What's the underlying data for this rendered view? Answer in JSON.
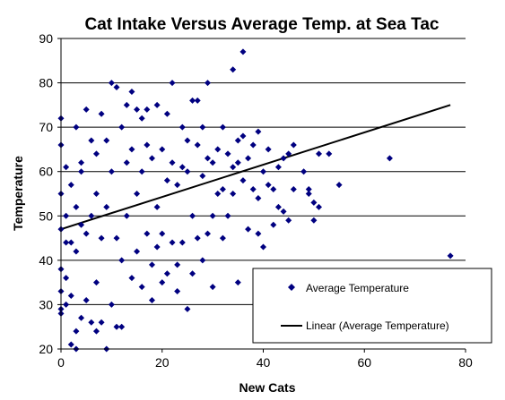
{
  "chart_data": {
    "type": "scatter",
    "title": "Cat Intake Versus  Average Temp. at Sea Tac",
    "xlabel": "New Cats",
    "ylabel": "Temperature",
    "xlim": [
      0,
      80
    ],
    "ylim": [
      20,
      90
    ],
    "x_ticks": [
      "0",
      "20",
      "40",
      "60",
      "80"
    ],
    "y_ticks": [
      "20",
      "30",
      "40",
      "50",
      "60",
      "70",
      "80",
      "90"
    ],
    "grid": "horizontal",
    "legend_position": "bottom-right",
    "marker_color": "#000080",
    "series": [
      {
        "name": "Average Temperature",
        "points": [
          [
            0,
            72
          ],
          [
            0,
            66
          ],
          [
            0,
            55
          ],
          [
            0,
            47
          ],
          [
            0,
            38
          ],
          [
            0,
            33
          ],
          [
            0,
            29
          ],
          [
            0,
            28
          ],
          [
            1,
            61
          ],
          [
            1,
            50
          ],
          [
            1,
            44
          ],
          [
            1,
            36
          ],
          [
            1,
            30
          ],
          [
            2,
            57
          ],
          [
            2,
            44
          ],
          [
            2,
            32
          ],
          [
            2,
            21
          ],
          [
            3,
            70
          ],
          [
            3,
            52
          ],
          [
            3,
            42
          ],
          [
            3,
            20
          ],
          [
            3,
            24
          ],
          [
            4,
            60
          ],
          [
            4,
            48
          ],
          [
            4,
            27
          ],
          [
            4,
            62
          ],
          [
            5,
            74
          ],
          [
            5,
            46
          ],
          [
            5,
            31
          ],
          [
            6,
            67
          ],
          [
            6,
            50
          ],
          [
            6,
            26
          ],
          [
            7,
            55
          ],
          [
            7,
            35
          ],
          [
            7,
            24
          ],
          [
            7,
            64
          ],
          [
            8,
            45
          ],
          [
            8,
            73
          ],
          [
            8,
            26
          ],
          [
            9,
            20
          ],
          [
            9,
            52
          ],
          [
            9,
            67
          ],
          [
            10,
            80
          ],
          [
            10,
            60
          ],
          [
            10,
            30
          ],
          [
            11,
            79
          ],
          [
            11,
            45
          ],
          [
            11,
            25
          ],
          [
            12,
            70
          ],
          [
            12,
            40
          ],
          [
            12,
            25
          ],
          [
            13,
            75
          ],
          [
            13,
            50
          ],
          [
            13,
            62
          ],
          [
            14,
            65
          ],
          [
            14,
            36
          ],
          [
            14,
            78
          ],
          [
            15,
            55
          ],
          [
            15,
            42
          ],
          [
            15,
            74
          ],
          [
            16,
            60
          ],
          [
            16,
            34
          ],
          [
            16,
            72
          ],
          [
            17,
            66
          ],
          [
            17,
            46
          ],
          [
            17,
            74
          ],
          [
            18,
            63
          ],
          [
            18,
            39
          ],
          [
            18,
            31
          ],
          [
            19,
            75
          ],
          [
            19,
            52
          ],
          [
            19,
            43
          ],
          [
            20,
            65
          ],
          [
            20,
            46
          ],
          [
            20,
            35
          ],
          [
            21,
            58
          ],
          [
            21,
            37
          ],
          [
            21,
            73
          ],
          [
            22,
            80
          ],
          [
            22,
            62
          ],
          [
            22,
            44
          ],
          [
            23,
            57
          ],
          [
            23,
            39
          ],
          [
            23,
            33
          ],
          [
            24,
            70
          ],
          [
            24,
            44
          ],
          [
            24,
            61
          ],
          [
            25,
            60
          ],
          [
            25,
            29
          ],
          [
            25,
            67
          ],
          [
            26,
            76
          ],
          [
            26,
            50
          ],
          [
            26,
            37
          ],
          [
            27,
            66
          ],
          [
            27,
            45
          ],
          [
            27,
            76
          ],
          [
            28,
            70
          ],
          [
            28,
            40
          ],
          [
            28,
            59
          ],
          [
            29,
            80
          ],
          [
            29,
            46
          ],
          [
            29,
            63
          ],
          [
            30,
            62
          ],
          [
            30,
            34
          ],
          [
            30,
            50
          ],
          [
            31,
            65
          ],
          [
            31,
            55
          ],
          [
            32,
            56
          ],
          [
            32,
            45
          ],
          [
            32,
            70
          ],
          [
            33,
            64
          ],
          [
            33,
            50
          ],
          [
            34,
            83
          ],
          [
            34,
            55
          ],
          [
            34,
            61
          ],
          [
            35,
            67
          ],
          [
            35,
            35
          ],
          [
            35,
            62
          ],
          [
            36,
            87
          ],
          [
            36,
            58
          ],
          [
            36,
            68
          ],
          [
            37,
            47
          ],
          [
            37,
            63
          ],
          [
            38,
            66
          ],
          [
            38,
            56
          ],
          [
            39,
            54
          ],
          [
            39,
            46
          ],
          [
            39,
            69
          ],
          [
            40,
            60
          ],
          [
            40,
            43
          ],
          [
            41,
            57
          ],
          [
            41,
            65
          ],
          [
            42,
            48
          ],
          [
            42,
            56
          ],
          [
            43,
            61
          ],
          [
            43,
            52
          ],
          [
            44,
            51
          ],
          [
            44,
            63
          ],
          [
            45,
            64
          ],
          [
            45,
            49
          ],
          [
            46,
            66
          ],
          [
            46,
            56
          ],
          [
            48,
            60
          ],
          [
            49,
            56
          ],
          [
            49,
            55
          ],
          [
            50,
            49
          ],
          [
            50,
            53
          ],
          [
            51,
            52
          ],
          [
            51,
            64
          ],
          [
            53,
            64
          ],
          [
            55,
            57
          ],
          [
            65,
            63
          ],
          [
            77,
            41
          ]
        ]
      },
      {
        "name": "Linear (Average Temperature)",
        "type": "line",
        "points": [
          [
            0,
            47
          ],
          [
            77,
            75
          ]
        ],
        "color": "#000000"
      }
    ]
  }
}
